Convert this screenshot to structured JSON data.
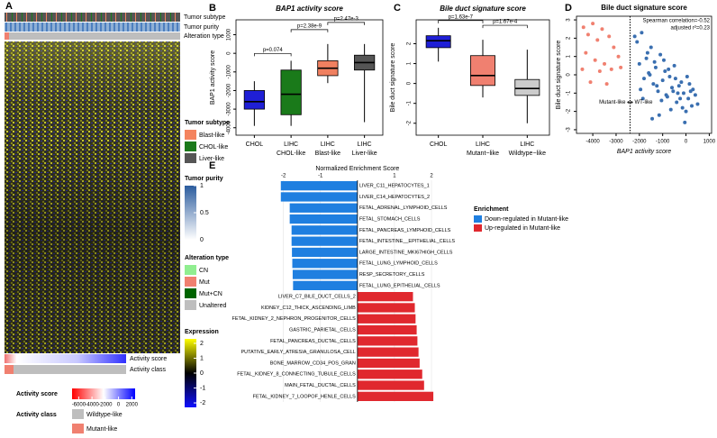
{
  "chart_data": [
    {
      "type": "heatmap",
      "panel": "A",
      "row_annotations": [
        "Tumor subtype",
        "Tumor purity",
        "Alteration type"
      ],
      "column_annotations": [
        "Activity score",
        "Activity class"
      ],
      "legends": [
        {
          "title": "Tumor subtype",
          "items": [
            {
              "label": "Blast-like",
              "color": "#f4845f"
            },
            {
              "label": "CHOL-like",
              "color": "#1b7a1b"
            },
            {
              "label": "Liver-like",
              "color": "#555555"
            }
          ]
        },
        {
          "title": "Tumor purity",
          "colors": [
            "#ffffff",
            "#2b5c9e"
          ],
          "lim": [
            0,
            1
          ],
          "ticks": [
            1,
            0.5,
            0
          ]
        },
        {
          "title": "Alteration type",
          "items": [
            {
              "label": "CN",
              "color": "#90ee90"
            },
            {
              "label": "Mut",
              "color": "#f08070"
            },
            {
              "label": "Mut+CN",
              "color": "#006400"
            },
            {
              "label": "Unaltered",
              "color": "#bebebe"
            }
          ]
        },
        {
          "title": "Expression",
          "colors": [
            "#1010ff",
            "#000000",
            "#ffff00"
          ],
          "lim": [
            -2.3,
            2.3
          ],
          "ticks": [
            2,
            1,
            0,
            -1,
            -2
          ]
        },
        {
          "title": "Activity score",
          "colors": [
            "#ff0000",
            "#ffffff",
            "#0000ff"
          ],
          "lim": [
            -7000,
            2500
          ],
          "ticks": [
            -6000,
            -4000,
            -2000,
            0,
            2000
          ]
        },
        {
          "title": "Activity class",
          "items": [
            {
              "label": "Wildtype-like",
              "color": "#bebebe"
            },
            {
              "label": "Mutant-like",
              "color": "#f08070"
            }
          ]
        }
      ]
    },
    {
      "type": "box",
      "panel": "B",
      "title": "BAP1 activity score",
      "ylabel": "BAP1 activity score",
      "categories": [
        [
          "CHOL"
        ],
        [
          "LIHC",
          "CHOL-like"
        ],
        [
          "LIHC",
          "Blast-like"
        ],
        [
          "LIHC",
          "Liver-like"
        ]
      ],
      "colors": [
        "#1f1fd6",
        "#1a7a1a",
        "#f08060",
        "#555555"
      ],
      "whisker_low": [
        -3900,
        -3900,
        -1600,
        -3700
      ],
      "q1": [
        -3000,
        -3300,
        -1200,
        -900
      ],
      "median": [
        -2600,
        -2200,
        -800,
        -500
      ],
      "q3": [
        -2000,
        -900,
        -400,
        -100
      ],
      "whisker_high": [
        -1500,
        -400,
        500,
        500
      ],
      "annotations": [
        "p=0.074",
        "p=2.38e-9",
        "p=2.47e-3"
      ],
      "ylim": [
        -4400,
        1800
      ],
      "yticks": [
        1000,
        0,
        -1000,
        -2000,
        -3000,
        -4000
      ]
    },
    {
      "type": "box",
      "panel": "C",
      "title": "Bile duct signature score",
      "ylabel": "Bile duct signature score",
      "categories": [
        [
          "CHOL"
        ],
        [
          "LIHC",
          "Mutant−like"
        ],
        [
          "LIHC",
          "Wildtype−like"
        ]
      ],
      "colors": [
        "#1f1fd6",
        "#f08070",
        "#cccccc"
      ],
      "whisker_low": [
        1.1,
        -0.7,
        -2.0
      ],
      "q1": [
        1.8,
        -0.1,
        -0.6
      ],
      "median": [
        2.15,
        0.4,
        -0.25
      ],
      "q3": [
        2.4,
        1.4,
        0.2
      ],
      "whisker_high": [
        2.8,
        2.2,
        1.7
      ],
      "annotations": [
        "p=1.63e-7",
        "p=1.67e-4"
      ],
      "ylim": [
        -2.6,
        3.2
      ],
      "yticks": [
        2,
        1,
        0,
        -1,
        -2
      ]
    },
    {
      "type": "scatter",
      "panel": "D",
      "title": "Bile duct signature score",
      "xlabel": "BAP1 activity score",
      "ylabel": "Bile duct signature score",
      "annotations": [
        "Spearman correlation=-0.52",
        "adjusted r²=0.23"
      ],
      "arrow_labels": [
        "Mutant-like",
        "WT-like"
      ],
      "vline": -2400,
      "xlim": [
        -4700,
        1100
      ],
      "xticks": [
        -4000,
        -3000,
        -2000,
        -1000,
        0,
        1000
      ],
      "ylim": [
        -3.2,
        3.2
      ],
      "yticks": [
        3,
        2,
        1,
        0,
        -1,
        -2,
        -3
      ],
      "series": [
        {
          "color": "#f08070",
          "x": [
            -4400,
            -4200,
            -4000,
            -3800,
            -4300,
            -3600,
            -3900,
            -3300,
            -3100,
            -4450,
            -3700,
            -3500,
            -2900,
            -4100,
            -3200,
            -2800,
            -3400
          ],
          "y": [
            2.6,
            2.2,
            2.8,
            1.9,
            1.2,
            2.5,
            0.8,
            2.1,
            1.5,
            0.3,
            0.2,
            0.6,
            1.0,
            -0.4,
            0.3,
            0.4,
            -0.5
          ]
        },
        {
          "color": "#3a6fb0",
          "x": [
            -2100,
            -1900,
            -1700,
            -1500,
            -1300,
            -1100,
            -900,
            -700,
            -500,
            -300,
            -100,
            100,
            300,
            500,
            -2000,
            -1800,
            -1600,
            -1400,
            -1200,
            -1000,
            -800,
            -600,
            -400,
            -200,
            0,
            200,
            400,
            -1950,
            -1650,
            -1350,
            -1050,
            -750,
            -450,
            -150,
            150,
            -1850,
            -1550,
            -1250,
            -950,
            -650,
            -350,
            -50,
            250,
            -2200,
            -1150,
            -850,
            -550,
            -250,
            50,
            -1450
          ],
          "y": [
            1.8,
            2.3,
            0.9,
            1.5,
            0.4,
            1.1,
            0.2,
            -0.1,
            0.5,
            -0.6,
            -1.0,
            -1.3,
            -0.8,
            -1.6,
            0.6,
            -0.2,
            0.1,
            -0.5,
            -0.9,
            -0.3,
            -1.2,
            -0.7,
            -1.5,
            -0.4,
            -2.0,
            -0.9,
            -1.1,
            -0.8,
            1.2,
            0.7,
            -1.4,
            0.3,
            -0.2,
            -1.8,
            -0.5,
            -1.3,
            0.0,
            -0.6,
            0.8,
            -1.9,
            -1.0,
            -2.6,
            -1.7,
            2.1,
            -2.2,
            -1.1,
            -0.9,
            -1.3,
            -0.1,
            -2.4
          ]
        }
      ]
    },
    {
      "type": "hbar",
      "panel": "E",
      "xlabel": "Normalized Enrichment Score",
      "legend_title": "Enrichment",
      "xlim": [
        -2.6,
        2.9
      ],
      "xticks": [
        -2,
        -1,
        1,
        2
      ],
      "grid": true,
      "categories": [
        "LIVER_C11_HEPATOCYTES_1",
        "LIVER_C14_HEPATOCYTES_2",
        "FETAL_ADRENAL_LYMPHOID_CELLS",
        "FETAL_STOMACH_CELLS",
        "FETAL_PANCREAS_LYMPHOID_CELLS",
        "FETAL_INTESTINE__EPITHELIAL_CELLS",
        "LARGE_INTESTINE_MKI67HIGH_CELLS",
        "FETAL_LUNG_LYMPHOID_CELLS",
        "RESP_SECRETORY_CELLS",
        "FETAL_LUNG_EPITHELIAL_CELLS",
        "LIVER_C7_BILE_DUCT_CELLS_2",
        "KIDNEY_C12_THICK_ASCENDING_LIMB",
        "FETAL_KIDNEY_2_NEPHRON_PROGENITOR_CELLS",
        "GASTRIC_PARIETAL_CELLS",
        "FETAL_PANCREAS_DUCTAL_CELLS",
        "PUTATIVE_EARLY_ATRESIA_GRANULOSA_CELL",
        "BONE_MARROW_CD34_POS_GRAN",
        "FETAL_KIDNEY_8_CONNECTING_TUBULE_CELLS",
        "MAIN_FETAL_DUCTAL_CELLS",
        "FETAL_KIDNEY_7_LOOPOF_HENLE_CELLS"
      ],
      "series": [
        {
          "name": "Down-regulated in Mutant-like",
          "color": "#1f7fe0",
          "values": [
            -2.07,
            -2.07,
            -1.83,
            -1.83,
            -1.78,
            -1.78,
            -1.77,
            -1.76,
            -1.75,
            -1.74,
            null,
            null,
            null,
            null,
            null,
            null,
            null,
            null,
            null,
            null
          ]
        },
        {
          "name": "Up-regulated in Mutant-like",
          "color": "#e0282e",
          "values": [
            null,
            null,
            null,
            null,
            null,
            null,
            null,
            null,
            null,
            null,
            1.5,
            1.55,
            1.57,
            1.6,
            1.62,
            1.65,
            1.68,
            1.75,
            1.8,
            2.05
          ]
        }
      ]
    }
  ]
}
